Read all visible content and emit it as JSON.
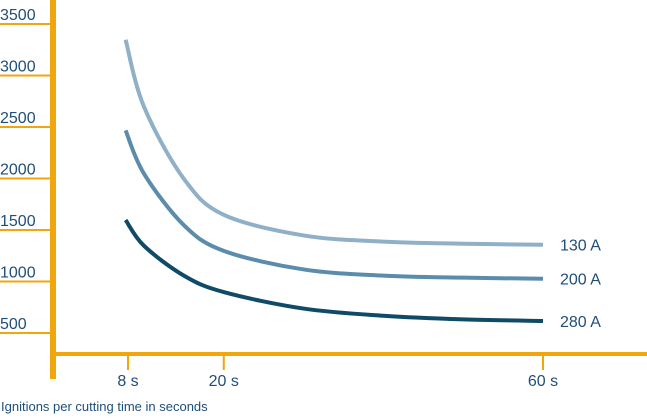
{
  "chart_data": {
    "type": "line",
    "xlabel": "Ignitions per cutting time in seconds",
    "ylabel": "",
    "xlim": [
      0,
      75
    ],
    "ylim": [
      0,
      3500
    ],
    "x_ticks": [
      {
        "value": 8,
        "label": "8 s"
      },
      {
        "value": 20,
        "label": "20 s"
      },
      {
        "value": 60,
        "label": "60 s"
      }
    ],
    "y_ticks": [
      {
        "value": 500,
        "label": "500"
      },
      {
        "value": 1000,
        "label": "1000"
      },
      {
        "value": 1500,
        "label": "1500"
      },
      {
        "value": 2000,
        "label": "2000"
      },
      {
        "value": 2500,
        "label": "2500"
      },
      {
        "value": 3000,
        "label": "3000"
      },
      {
        "value": 3500,
        "label": "3500"
      }
    ],
    "grid": false,
    "legend": "inline labels at line ends",
    "series": [
      {
        "name": "130 A",
        "color": "#8fb0c7",
        "x": [
          7.7,
          10,
          15,
          20,
          30,
          40,
          50,
          60
        ],
        "y": [
          3250,
          2600,
          1900,
          1550,
          1350,
          1290,
          1270,
          1260
        ]
      },
      {
        "name": "200 A",
        "color": "#5b8cab",
        "x": [
          7.7,
          10,
          15,
          20,
          30,
          40,
          50,
          60
        ],
        "y": [
          2370,
          1950,
          1450,
          1200,
          1020,
          960,
          940,
          930
        ]
      },
      {
        "name": "280 A",
        "color": "#0f4a67",
        "x": [
          7.7,
          10,
          15,
          20,
          30,
          40,
          50,
          60
        ],
        "y": [
          1500,
          1250,
          960,
          800,
          640,
          570,
          535,
          520
        ]
      }
    ]
  },
  "colors": {
    "axis": "#f2a60d",
    "text": "#1f4e79"
  }
}
